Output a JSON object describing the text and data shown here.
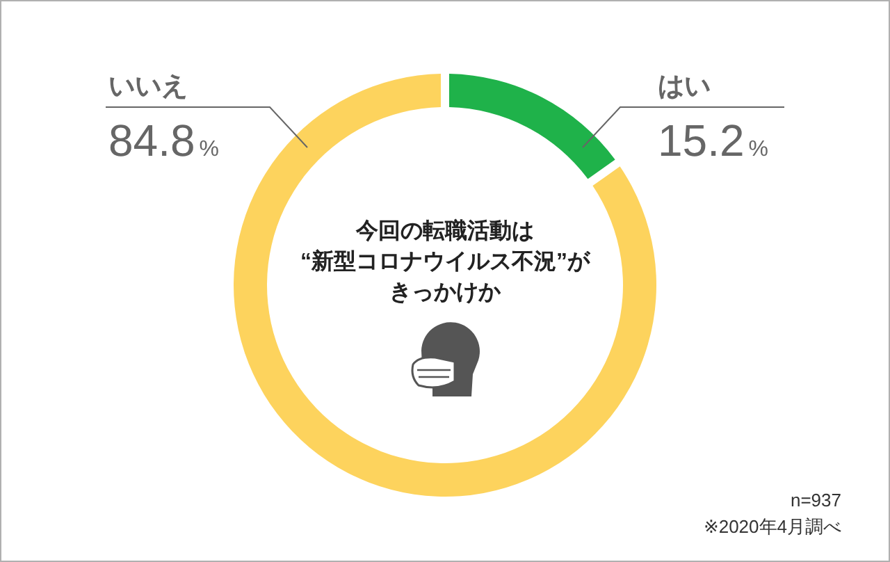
{
  "chart_data": {
    "type": "donut",
    "title": "今回の転職活動は“新型コロナウイルス不況”がきっかけか",
    "categories": [
      "はい",
      "いいえ"
    ],
    "values": [
      15.2,
      84.8
    ],
    "colors": [
      "#1fb24a",
      "#fdd35d"
    ],
    "value_labels": [
      "15.2%",
      "84.8%"
    ],
    "annotations": [
      "n=937",
      "※2020年4月調べ"
    ]
  }
}
